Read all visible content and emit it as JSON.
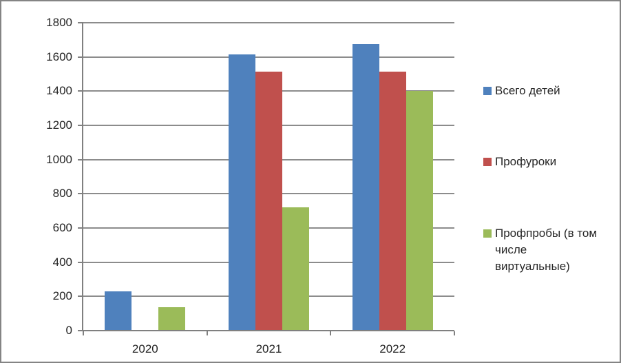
{
  "chart_data": {
    "type": "bar",
    "title": "",
    "categories": [
      "2020",
      "2021",
      "2022"
    ],
    "series": [
      {
        "name": "Всего детей",
        "color": "#4F81BD",
        "values": [
          230,
          1615,
          1675
        ],
        "legend_lines": [
          "Всего детей"
        ]
      },
      {
        "name": "Профуроки",
        "color": "#C0504D",
        "values": [
          0,
          1515,
          1515
        ],
        "legend_lines": [
          "Профуроки"
        ]
      },
      {
        "name": "Профпробы (в том числе виртуальные)",
        "color": "#9BBB59",
        "values": [
          135,
          720,
          1400
        ],
        "legend_lines": [
          "Профпробы (в том",
          "числе",
          "виртуальные)"
        ]
      }
    ],
    "xlabel": "",
    "ylabel": "",
    "ylim": [
      0,
      1800
    ],
    "ytick_step": 200,
    "ytick_labels": [
      "0",
      "200",
      "400",
      "600",
      "800",
      "1000",
      "1200",
      "1400",
      "1600",
      "1800"
    ],
    "grid": true,
    "legend_position": "right",
    "colors": {
      "gridline": "#8C8C8C",
      "axis": "#808080",
      "text": "#262626",
      "background": "#FFFFFF",
      "frame_border": "#848484"
    }
  }
}
